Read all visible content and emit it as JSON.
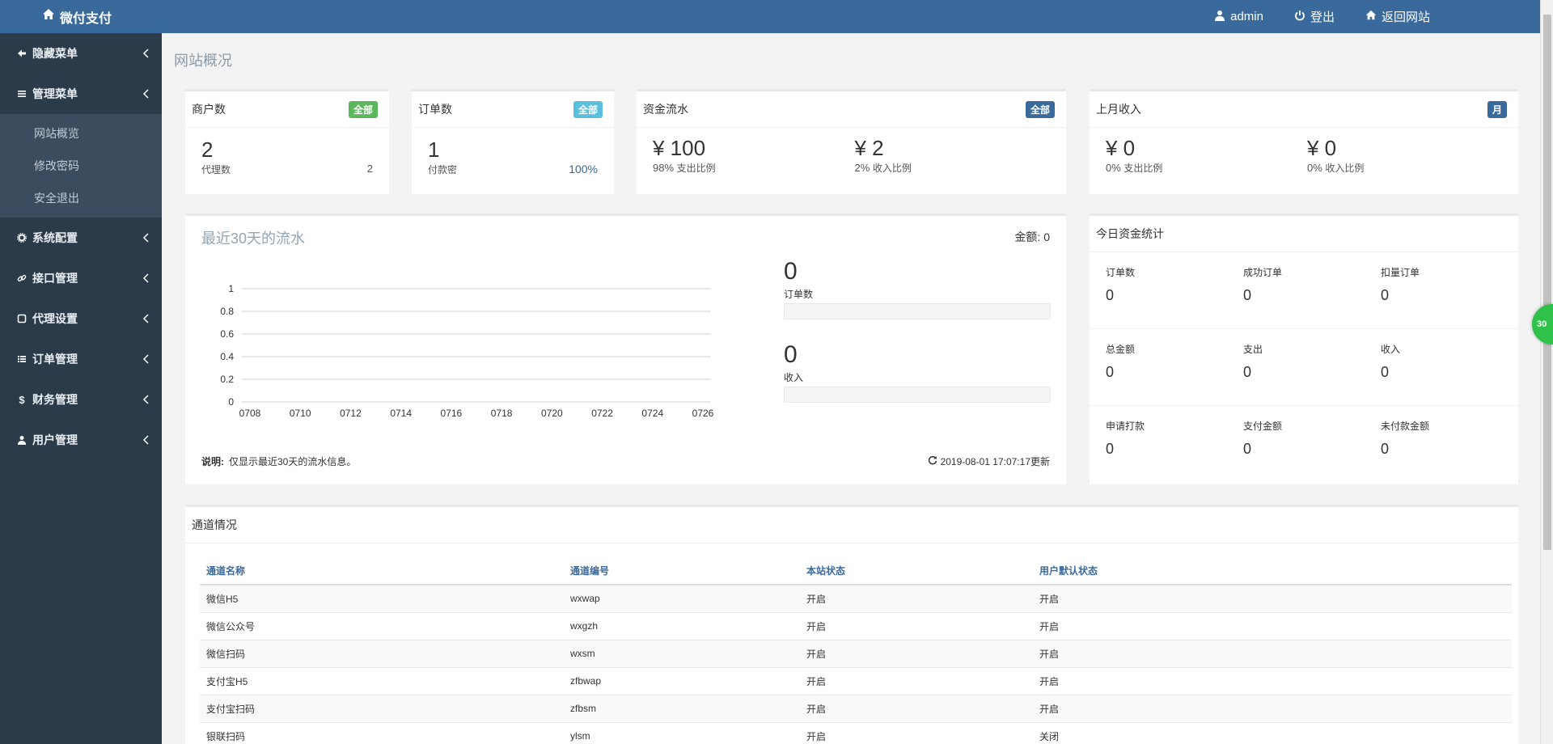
{
  "topbar": {
    "brand": "微付支付",
    "user": "admin",
    "logout": "登出",
    "back_site": "返回网站"
  },
  "sidebar": {
    "items": [
      {
        "label": "隐藏菜单",
        "icon": "arrow-left-icon"
      },
      {
        "label": "管理菜单",
        "icon": "list-icon",
        "sub": [
          "网站概览",
          "修改密码",
          "安全退出"
        ]
      },
      {
        "label": "系统配置",
        "icon": "gear-icon"
      },
      {
        "label": "接口管理",
        "icon": "link-icon"
      },
      {
        "label": "代理设置",
        "icon": "square-icon"
      },
      {
        "label": "订单管理",
        "icon": "list-icon"
      },
      {
        "label": "财务管理",
        "icon": "dollar-icon"
      },
      {
        "label": "用户管理",
        "icon": "user-icon"
      }
    ]
  },
  "page_title": "网站概况",
  "stats": {
    "merchants": {
      "title": "商户数",
      "badge": "全部",
      "badge_color": "#5cb85c",
      "value": "2",
      "sub_label": "代理数",
      "sub_value": "2"
    },
    "orders": {
      "title": "订单数",
      "badge": "全部",
      "badge_color": "#5bc0de",
      "value": "1",
      "sub_label": "付款密",
      "sub_value": "100%"
    },
    "flow": {
      "title": "资金流水",
      "badge": "全部",
      "badge_color": "#3a6a9b",
      "left_value": "¥ 100",
      "left_pct": "98%",
      "left_label": "支出比例",
      "right_value": "¥ 2",
      "right_pct": "2%",
      "right_label": "收入比例"
    },
    "last_month": {
      "title": "上月收入",
      "badge": "月",
      "badge_color": "#3a6a9b",
      "left_value": "¥ 0",
      "left_pct": "0%",
      "left_label": "支出比例",
      "right_value": "¥ 0",
      "right_pct": "0%",
      "right_label": "收入比例"
    }
  },
  "chart_card": {
    "title": "最近30天的流水",
    "amount_label": "金额:",
    "amount_value": "0",
    "orders_value": "0",
    "orders_label": "订单数",
    "income_value": "0",
    "income_label": "收入",
    "note_label": "说明:",
    "note_text": "仅显示最近30天的流水信息。",
    "updated": "2019-08-01 17:07:17更新"
  },
  "chart_data": {
    "type": "line",
    "x": [
      "0708",
      "0710",
      "0712",
      "0714",
      "0716",
      "0718",
      "0720",
      "0722",
      "0724",
      "0726"
    ],
    "yticks": [
      "0",
      "0.2",
      "0.4",
      "0.6",
      "0.8",
      "1"
    ],
    "ylim": [
      0,
      1
    ],
    "series": [],
    "grid": true
  },
  "today": {
    "title": "今日资金统计",
    "rows": [
      [
        {
          "label": "订单数",
          "value": "0"
        },
        {
          "label": "成功订单",
          "value": "0"
        },
        {
          "label": "扣量订单",
          "value": "0"
        }
      ],
      [
        {
          "label": "总金额",
          "value": "0"
        },
        {
          "label": "支出",
          "value": "0"
        },
        {
          "label": "收入",
          "value": "0"
        }
      ],
      [
        {
          "label": "申请打款",
          "value": "0"
        },
        {
          "label": "支付金额",
          "value": "0"
        },
        {
          "label": "未付款金额",
          "value": "0"
        }
      ]
    ]
  },
  "channels": {
    "title": "通道情况",
    "headers": [
      "通道名称",
      "通道编号",
      "本站状态",
      "用户默认状态"
    ],
    "rows": [
      [
        "微信H5",
        "wxwap",
        "开启",
        "开启"
      ],
      [
        "微信公众号",
        "wxgzh",
        "开启",
        "开启"
      ],
      [
        "微信扫码",
        "wxsm",
        "开启",
        "开启"
      ],
      [
        "支付宝H5",
        "zfbwap",
        "开启",
        "开启"
      ],
      [
        "支付宝扫码",
        "zfbsm",
        "开启",
        "开启"
      ],
      [
        "银联扫码",
        "ylsm",
        "开启",
        "关闭"
      ]
    ]
  },
  "float_ball": "30"
}
